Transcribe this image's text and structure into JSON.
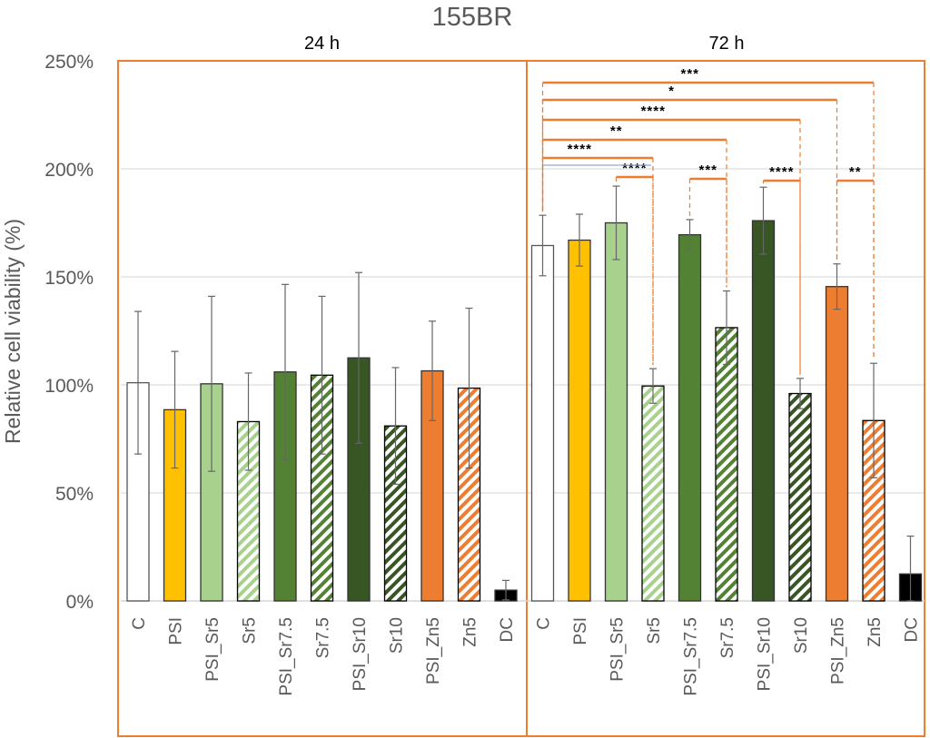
{
  "chart_data": {
    "type": "bar",
    "title": "155BR",
    "ylabel": "Relative cell viability (%)",
    "xlabel": "",
    "ylim": [
      0,
      250
    ],
    "yticks": [
      "0%",
      "50%",
      "100%",
      "150%",
      "200%",
      "250%"
    ],
    "ytick_values": [
      0,
      50,
      100,
      150,
      200,
      250
    ],
    "grid": true,
    "groups": [
      {
        "name": "24 h",
        "categories": [
          "C",
          "PSI",
          "PSI_Sr5",
          "Sr5",
          "PSI_Sr7.5",
          "Sr7.5",
          "PSI_Sr10",
          "Sr10",
          "PSI_Zn5",
          "Zn5",
          "DC"
        ],
        "values": [
          101,
          88.5,
          100.5,
          83,
          106,
          104.5,
          112.5,
          81,
          106.5,
          98.5,
          5
        ],
        "errors": [
          33,
          27,
          40.5,
          22.5,
          40.5,
          36.5,
          39.5,
          27,
          23,
          37,
          4.5
        ]
      },
      {
        "name": "72 h",
        "categories": [
          "C",
          "PSI",
          "PSI_Sr5",
          "Sr5",
          "PSI_Sr7.5",
          "Sr7.5",
          "PSI_Sr10",
          "Sr10",
          "PSI_Zn5",
          "Zn5",
          "DC"
        ],
        "values": [
          164.5,
          167,
          175,
          99.5,
          169.5,
          126.5,
          176,
          96,
          145.5,
          83.5,
          12.5
        ],
        "errors": [
          14,
          12,
          17,
          8,
          7,
          17,
          15.5,
          7,
          10.5,
          26.5,
          17.5
        ]
      }
    ],
    "styles": {
      "C": {
        "color": "#FFFFFF",
        "hatched": false
      },
      "PSI": {
        "color": "#FFC000",
        "hatched": false
      },
      "PSI_Sr5": {
        "color": "#A9D18E",
        "hatched": false
      },
      "Sr5": {
        "color": "#A9D18E",
        "hatched": true
      },
      "PSI_Sr7.5": {
        "color": "#548235",
        "hatched": false
      },
      "Sr7.5": {
        "color": "#548235",
        "hatched": true
      },
      "PSI_Sr10": {
        "color": "#375623",
        "hatched": false
      },
      "Sr10": {
        "color": "#375623",
        "hatched": true
      },
      "PSI_Zn5": {
        "color": "#ED7D31",
        "hatched": false
      },
      "Zn5": {
        "color": "#ED7D31",
        "hatched": true
      },
      "DC": {
        "color": "#000000",
        "hatched": false
      }
    },
    "annotations": [
      {
        "group": "72 h",
        "from": "C",
        "to": "Zn5",
        "label": "***",
        "level": 5
      },
      {
        "group": "72 h",
        "from": "C",
        "to": "PSI_Zn5",
        "label": "*",
        "level": 4
      },
      {
        "group": "72 h",
        "from": "C",
        "to": "Sr10",
        "label": "****",
        "level": 3
      },
      {
        "group": "72 h",
        "from": "C",
        "to": "Sr7.5",
        "label": "**",
        "level": 2
      },
      {
        "group": "72 h",
        "from": "C",
        "to": "Sr5",
        "label": "****",
        "level": 1
      },
      {
        "group": "72 h",
        "from": "PSI_Sr5",
        "to": "Sr5",
        "label": "****",
        "level": 0
      },
      {
        "group": "72 h",
        "from": "PSI_Sr7.5",
        "to": "Sr7.5",
        "label": "***",
        "level": 0
      },
      {
        "group": "72 h",
        "from": "PSI_Sr10",
        "to": "Sr10",
        "label": "****",
        "level": 0
      },
      {
        "group": "72 h",
        "from": "PSI_Zn5",
        "to": "Zn5",
        "label": "**",
        "level": 0
      }
    ],
    "accent_color": "#ED7D31"
  }
}
